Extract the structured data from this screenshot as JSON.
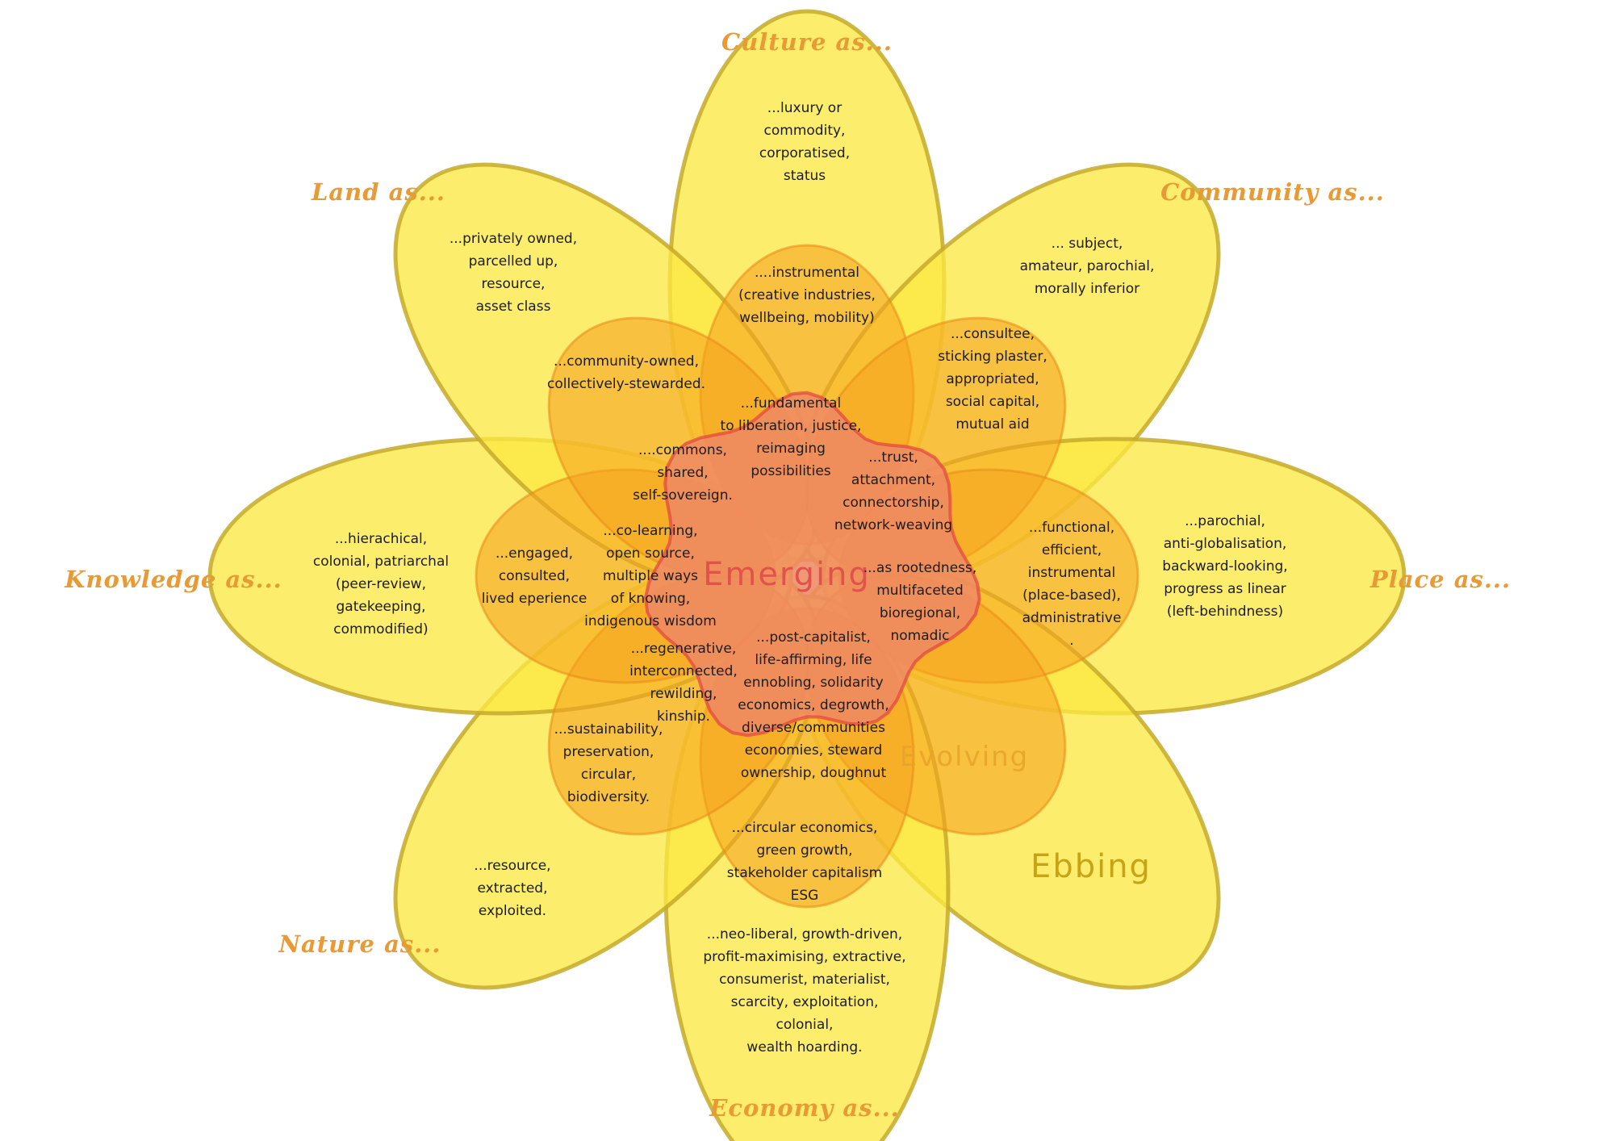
{
  "categories": {
    "culture": "Culture as...",
    "community": "Community as...",
    "place": "Place as...",
    "economy": "Economy as...",
    "nature": "Nature as...",
    "knowledge": "Knowledge as...",
    "land": "Land as..."
  },
  "rings": {
    "emerging": "Emerging",
    "evolving": "Evolving",
    "ebbing": "Ebbing"
  },
  "texts": {
    "culture_ebbing": [
      "...luxury or",
      "commodity,",
      "corporatised,",
      "status"
    ],
    "culture_evolving": [
      "....instrumental",
      "(creative industries,",
      "wellbeing, mobility)"
    ],
    "culture_emerging": [
      "...fundamental",
      "to liberation, justice,",
      "reimaging",
      "possibilities"
    ],
    "community_ebbing": [
      "... subject,",
      "amateur, parochial,",
      "morally inferior"
    ],
    "community_evolving": [
      "...consultee,",
      "sticking plaster,",
      "appropriated,",
      "social capital,",
      "mutual aid"
    ],
    "community_emerging": [
      "...trust,",
      "attachment,",
      "connectorship,",
      "network-weaving"
    ],
    "place_ebbing": [
      "...parochial,",
      "anti-globalisation,",
      "backward-looking,",
      "progress as linear",
      "(left-behindness)"
    ],
    "place_evolving": [
      "...functional,",
      "efficient,",
      "instrumental",
      "(place-based),",
      "administrative",
      "."
    ],
    "place_emerging": [
      "...as rootedness,",
      "multifaceted",
      "bioregional,",
      "nomadic"
    ],
    "economy_ebbing": [
      "...neo-liberal, growth-driven,",
      "profit-maximising, extractive,",
      "consumerist, materialist,",
      "scarcity, exploitation,",
      "colonial,",
      "wealth hoarding."
    ],
    "economy_evolving": [
      "...circular economics,",
      "green growth,",
      "stakeholder capitalism",
      "ESG"
    ],
    "economy_emerging": [
      "...post-capitalist,",
      "life-affirming, life",
      "ennobling, solidarity",
      "economics, degrowth,",
      "diverse/communities",
      "economies, steward",
      "ownership, doughnut"
    ],
    "nature_ebbing": [
      "...resource,",
      "extracted,",
      "exploited."
    ],
    "nature_evolving": [
      "...sustainability,",
      "preservation,",
      "circular,",
      "biodiversity."
    ],
    "nature_emerging": [
      "...regenerative,",
      "interconnected,",
      "rewilding,",
      "kinship."
    ],
    "knowledge_ebbing": [
      "...hierachical,",
      "colonial, patriarchal",
      "(peer-review,",
      "gatekeeping,",
      "commodified)"
    ],
    "knowledge_evolving": [
      "...engaged,",
      "consulted,",
      "lived eperience"
    ],
    "knowledge_emerging": [
      "...co-learning,",
      "open source,",
      "multiple ways",
      "of knowing,",
      "indigenous wisdom"
    ],
    "land_ebbing": [
      "...privately owned,",
      "parcelled up,",
      "resource,",
      "asset class"
    ],
    "land_evolving": [
      "...community-owned,",
      "collectively-stewarded."
    ],
    "land_emerging": [
      "....commons,",
      "shared,",
      "self-sovereign."
    ]
  },
  "colors": {
    "ebbing_fill": "#fbe843",
    "ebbing_outline": "#c5aa2a",
    "evolving_fill": "#f5a21f",
    "emerging_fill": "#ef8a63",
    "emerging_outline": "#e2453f",
    "category_text": "#e89a34"
  }
}
